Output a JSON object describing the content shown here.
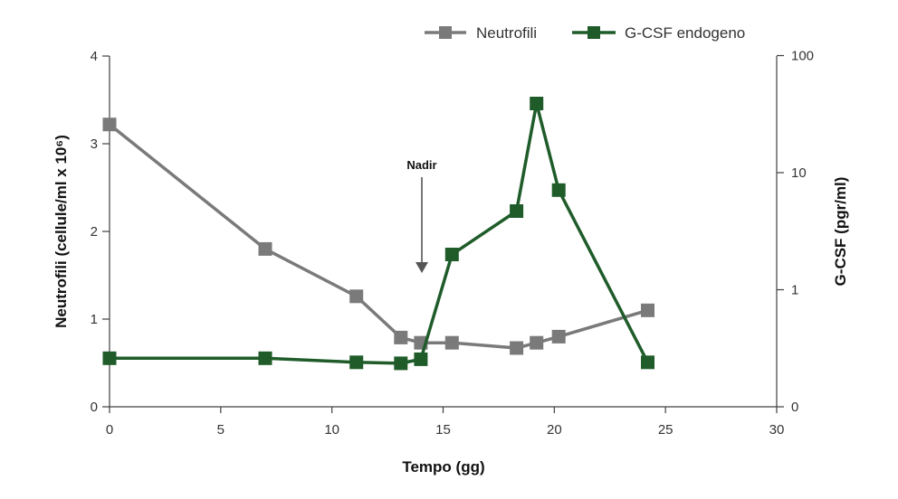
{
  "chart_data": {
    "type": "line",
    "xlabel": "Tempo (gg)",
    "ylabel_left": "Neutrofili (cellule/ml x 10⁶)",
    "ylabel_right": "G-CSF (pgr/ml)",
    "x_ticks": [
      "0",
      "5",
      "10",
      "15",
      "20",
      "25",
      "30"
    ],
    "xlim": [
      0,
      30
    ],
    "y_left_ticks": [
      "0",
      "1",
      "2",
      "3",
      "4"
    ],
    "ylim_left": [
      0,
      4
    ],
    "y_right_ticks": [
      "0",
      "1",
      "10",
      "100"
    ],
    "y_right_scale": "log (0 at baseline)",
    "legend_position": "top-right",
    "grid": false,
    "annotation": {
      "text": "Nadir",
      "x": 14
    },
    "series": [
      {
        "name": "Neutrofili",
        "axis": "left",
        "color": "#7a7a7a",
        "marker": "square",
        "points": [
          {
            "x": 0,
            "y": 3.22
          },
          {
            "x": 7,
            "y": 1.8
          },
          {
            "x": 11.1,
            "y": 1.26
          },
          {
            "x": 13.1,
            "y": 0.79
          },
          {
            "x": 14,
            "y": 0.73
          },
          {
            "x": 15.4,
            "y": 0.73
          },
          {
            "x": 18.3,
            "y": 0.67
          },
          {
            "x": 19.2,
            "y": 0.73
          },
          {
            "x": 20.2,
            "y": 0.8
          },
          {
            "x": 24.2,
            "y": 1.1
          }
        ]
      },
      {
        "name": "G-CSF endogeno",
        "axis": "right",
        "color": "#1f5c2a",
        "marker": "square",
        "points": [
          {
            "x": 0,
            "y": 0.26
          },
          {
            "x": 7,
            "y": 0.26
          },
          {
            "x": 11.1,
            "y": 0.24
          },
          {
            "x": 13.1,
            "y": 0.235
          },
          {
            "x": 14,
            "y": 0.255
          },
          {
            "x": 15.4,
            "y": 2.0
          },
          {
            "x": 18.3,
            "y": 4.7
          },
          {
            "x": 19.2,
            "y": 39
          },
          {
            "x": 20.2,
            "y": 7.1
          },
          {
            "x": 24.2,
            "y": 0.24
          }
        ]
      }
    ]
  }
}
